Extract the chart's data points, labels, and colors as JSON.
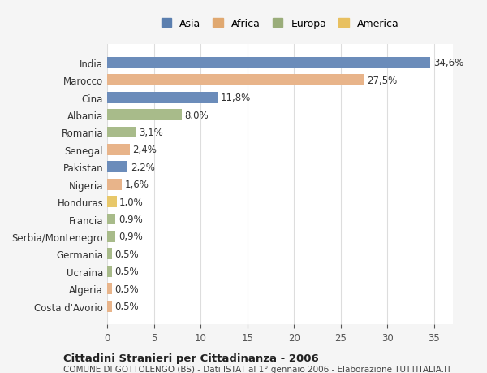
{
  "countries": [
    "India",
    "Marocco",
    "Cina",
    "Albania",
    "Romania",
    "Senegal",
    "Pakistan",
    "Nigeria",
    "Honduras",
    "Francia",
    "Serbia/Montenegro",
    "Germania",
    "Ucraina",
    "Algeria",
    "Costa d'Avorio"
  ],
  "values": [
    34.6,
    27.5,
    11.8,
    8.0,
    3.1,
    2.4,
    2.2,
    1.6,
    1.0,
    0.9,
    0.9,
    0.5,
    0.5,
    0.5,
    0.5
  ],
  "labels": [
    "34,6%",
    "27,5%",
    "11,8%",
    "8,0%",
    "3,1%",
    "2,4%",
    "2,2%",
    "1,6%",
    "1,0%",
    "0,9%",
    "0,9%",
    "0,5%",
    "0,5%",
    "0,5%",
    "0,5%"
  ],
  "continents": [
    "Asia",
    "Africa",
    "Asia",
    "Europa",
    "Europa",
    "Africa",
    "Asia",
    "Africa",
    "America",
    "Europa",
    "Europa",
    "Europa",
    "Europa",
    "Africa",
    "Africa"
  ],
  "colors": {
    "Asia": "#6b8cba",
    "Africa": "#e8b48a",
    "Europa": "#a8bb8a",
    "America": "#e8c86a"
  },
  "legend_colors": {
    "Asia": "#5b7faf",
    "Africa": "#e0a870",
    "Europa": "#9aad7a",
    "America": "#e8c060"
  },
  "bg_color": "#f5f5f5",
  "plot_bg_color": "#ffffff",
  "title": "Cittadini Stranieri per Cittadinanza - 2006",
  "subtitle": "COMUNE DI GOTTOLENGO (BS) - Dati ISTAT al 1° gennaio 2006 - Elaborazione TUTTITALIA.IT",
  "xlim": [
    0,
    37
  ],
  "xticks": [
    0,
    5,
    10,
    15,
    20,
    25,
    30,
    35
  ]
}
